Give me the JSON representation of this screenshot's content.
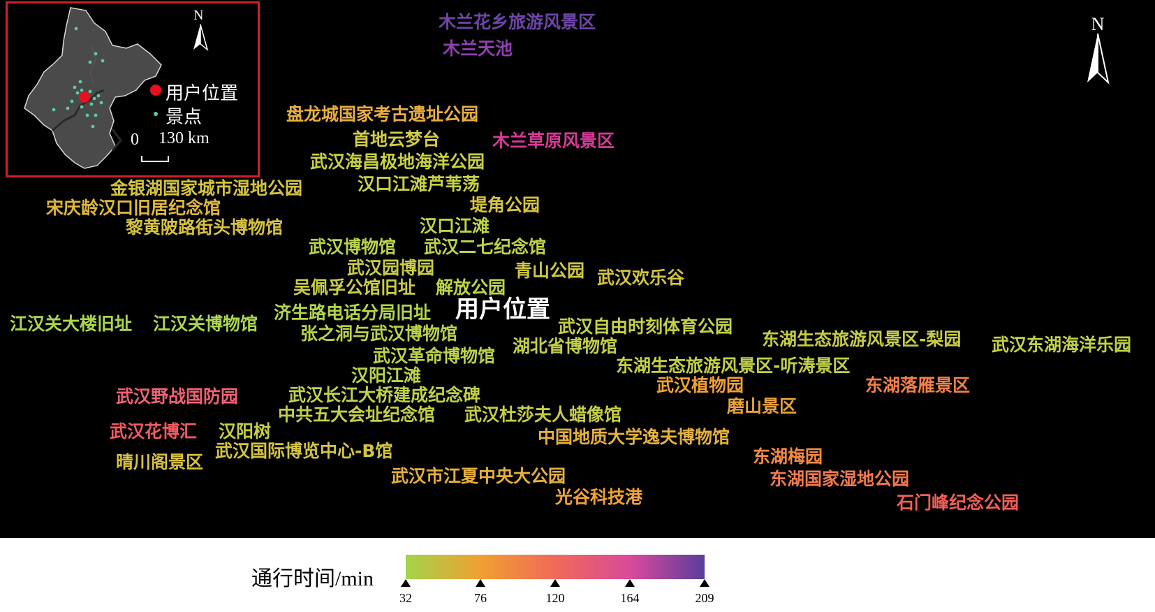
{
  "colors": {
    "background": "#000000",
    "inset_border": "#d0202a",
    "user_marker": "#e8101e",
    "attraction_marker": "#5fc9a8"
  },
  "inset": {
    "legend_user": "用户位置",
    "legend_attraction": "景点",
    "scale_zero": "0",
    "scale_label": "130 km",
    "north": "N"
  },
  "north_arrow": "N",
  "user_location_label": "用户位置",
  "legend": {
    "title": "通行时间/min",
    "ticks": [
      "32",
      "76",
      "120",
      "164",
      "209"
    ],
    "ramp_colors": [
      "#a3d44a",
      "#f0a032",
      "#f06a58",
      "#d94a9a",
      "#5a3d9c"
    ]
  },
  "attractions": [
    {
      "name": "木兰花乡旅游风景区",
      "color": "#6f45a8"
    },
    {
      "name": "木兰天池",
      "color": "#9040b0"
    },
    {
      "name": "盘龙城国家考古遗址公园",
      "color": "#e8ae40"
    },
    {
      "name": "首地云梦台",
      "color": "#d2cc48"
    },
    {
      "name": "木兰草原风景区",
      "color": "#d83a98"
    },
    {
      "name": "武汉海昌极地海洋公园",
      "color": "#c9d044"
    },
    {
      "name": "金银湖国家城市湿地公园",
      "color": "#d4c440"
    },
    {
      "name": "汉口江滩芦苇荡",
      "color": "#c7d246"
    },
    {
      "name": "宋庆龄汉口旧居纪念馆",
      "color": "#e0b840"
    },
    {
      "name": "堤角公园",
      "color": "#d8c440"
    },
    {
      "name": "黎黄陂路街头博物馆",
      "color": "#d6c240"
    },
    {
      "name": "汉口江滩",
      "color": "#c0d448"
    },
    {
      "name": "武汉博物馆",
      "color": "#b8d44c"
    },
    {
      "name": "武汉二七纪念馆",
      "color": "#c0d24a"
    },
    {
      "name": "武汉园博园",
      "color": "#c9cc46"
    },
    {
      "name": "青山公园",
      "color": "#cfc742"
    },
    {
      "name": "武汉欢乐谷",
      "color": "#d2c443"
    },
    {
      "name": "吴佩孚公馆旧址",
      "color": "#c9cc46"
    },
    {
      "name": "解放公园",
      "color": "#bdd44a"
    },
    {
      "name": "江汉关大楼旧址",
      "color": "#acd64e"
    },
    {
      "name": "江汉关博物馆",
      "color": "#acd64e"
    },
    {
      "name": "济生路电话分局旧址",
      "color": "#b2d44c"
    },
    {
      "name": "武汉自由时刻体育公园",
      "color": "#c3d049"
    },
    {
      "name": "张之洞与武汉博物馆",
      "color": "#b8d24a"
    },
    {
      "name": "东湖生态旅游风景区-梨园",
      "color": "#c6cc45"
    },
    {
      "name": "武汉东湖海洋乐园",
      "color": "#c2d048"
    },
    {
      "name": "湖北省博物馆",
      "color": "#c3ce47"
    },
    {
      "name": "武汉革命博物馆",
      "color": "#bcd24a"
    },
    {
      "name": "东湖生态旅游风景区-听涛景区",
      "color": "#c2d048"
    },
    {
      "name": "汉阳江滩",
      "color": "#b8d44c"
    },
    {
      "name": "武汉植物园",
      "color": "#f0a036"
    },
    {
      "name": "东湖落雁景区",
      "color": "#f48048"
    },
    {
      "name": "武汉野战国防园",
      "color": "#f06272"
    },
    {
      "name": "武汉长江大桥建成纪念碑",
      "color": "#c2d04a"
    },
    {
      "name": "磨山景区",
      "color": "#eba23a"
    },
    {
      "name": "中共五大会址纪念馆",
      "color": "#c4cf48"
    },
    {
      "name": "武汉杜莎夫人蜡像馆",
      "color": "#c6cd46"
    },
    {
      "name": "武汉花博汇",
      "color": "#f05a60"
    },
    {
      "name": "汉阳树",
      "color": "#c6cd46"
    },
    {
      "name": "中国地质大学逸夫博物馆",
      "color": "#e6b23c"
    },
    {
      "name": "武汉国际博览中心-B馆",
      "color": "#d2c442"
    },
    {
      "name": "东湖梅园",
      "color": "#f48a44"
    },
    {
      "name": "晴川阁景区",
      "color": "#d8c040"
    },
    {
      "name": "武汉市江夏中央大公园",
      "color": "#e6b03c"
    },
    {
      "name": "东湖国家湿地公园",
      "color": "#f27a4c"
    },
    {
      "name": "光谷科技港",
      "color": "#f0a238"
    },
    {
      "name": "石门峰纪念公园",
      "color": "#f25e58"
    }
  ]
}
